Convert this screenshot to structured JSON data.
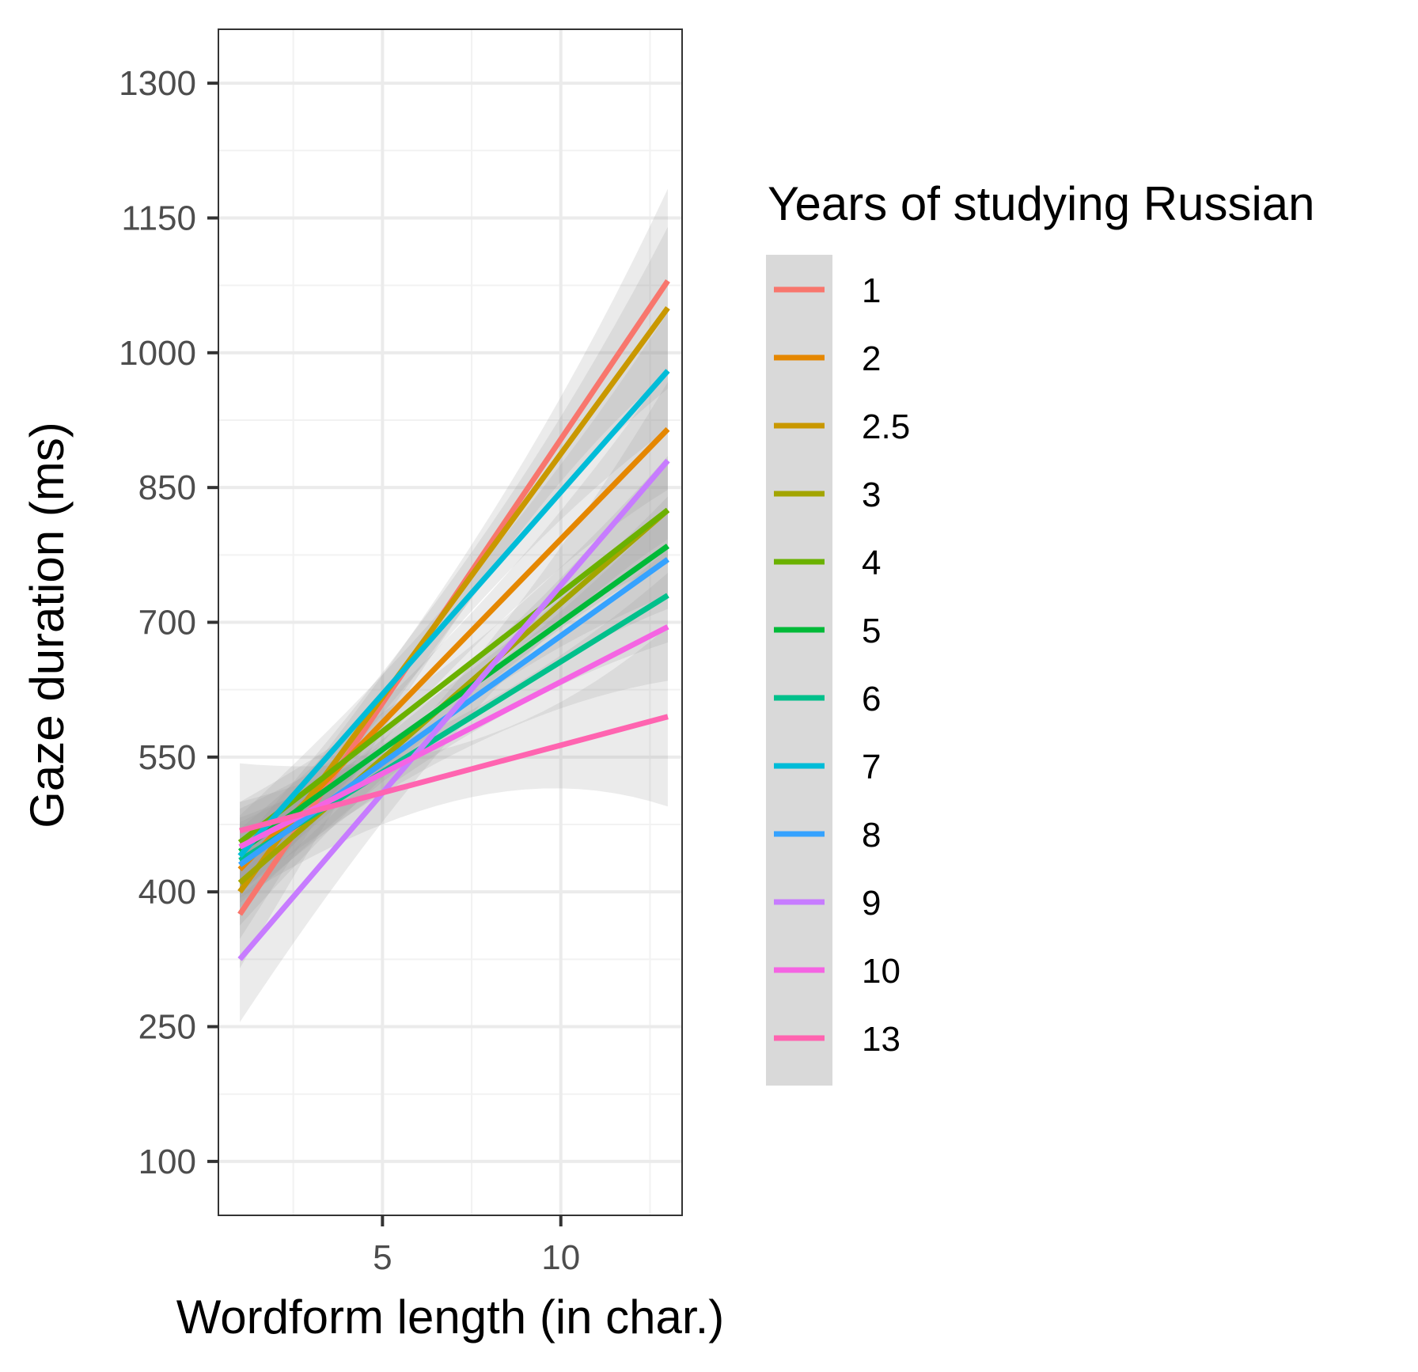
{
  "chart_data": {
    "type": "line",
    "title": "",
    "xlabel": "Wordform length (in char.)",
    "ylabel": "Gaze duration (ms)",
    "xlim": [
      0.4,
      13.4
    ],
    "ylim": [
      40,
      1360
    ],
    "x_ticks": [
      5,
      10
    ],
    "y_ticks": [
      100,
      250,
      400,
      550,
      700,
      850,
      1000,
      1150,
      1300
    ],
    "grid": true,
    "legend_title": "Years of studying Russian",
    "legend_position": "right",
    "x_range": [
      1,
      13
    ],
    "series": [
      {
        "name": "1",
        "color": "#F8766D",
        "x": [
          1,
          13
        ],
        "y": [
          375,
          1080
        ],
        "ci_low": [
          320,
          980
        ],
        "ci_high": [
          440,
          1185
        ]
      },
      {
        "name": "2",
        "color": "#E58700",
        "x": [
          1,
          13
        ],
        "y": [
          425,
          915
        ],
        "ci_low": [
          380,
          850
        ],
        "ci_high": [
          470,
          985
        ]
      },
      {
        "name": "2.5",
        "color": "#C99800",
        "x": [
          1,
          13
        ],
        "y": [
          400,
          1050
        ],
        "ci_low": [
          350,
          960
        ],
        "ci_high": [
          455,
          1140
        ]
      },
      {
        "name": "3",
        "color": "#A3A500",
        "x": [
          1,
          13
        ],
        "y": [
          410,
          825
        ],
        "ci_low": [
          365,
          770
        ],
        "ci_high": [
          460,
          885
        ]
      },
      {
        "name": "4",
        "color": "#6BB100",
        "x": [
          1,
          13
        ],
        "y": [
          455,
          825
        ],
        "ci_low": [
          410,
          765
        ],
        "ci_high": [
          500,
          885
        ]
      },
      {
        "name": "5",
        "color": "#00BA38",
        "x": [
          1,
          13
        ],
        "y": [
          445,
          785
        ],
        "ci_low": [
          400,
          730
        ],
        "ci_high": [
          495,
          840
        ]
      },
      {
        "name": "6",
        "color": "#00C08B",
        "x": [
          1,
          13
        ],
        "y": [
          435,
          730
        ],
        "ci_low": [
          390,
          680
        ],
        "ci_high": [
          485,
          785
        ]
      },
      {
        "name": "7",
        "color": "#00BCD8",
        "x": [
          1,
          13
        ],
        "y": [
          440,
          980
        ],
        "ci_low": [
          395,
          915
        ],
        "ci_high": [
          485,
          1045
        ]
      },
      {
        "name": "8",
        "color": "#35A2FF",
        "x": [
          1,
          13
        ],
        "y": [
          430,
          770
        ],
        "ci_low": [
          385,
          715
        ],
        "ci_high": [
          480,
          825
        ]
      },
      {
        "name": "9",
        "color": "#C77CFF",
        "x": [
          1,
          13
        ],
        "y": [
          325,
          880
        ],
        "ci_low": [
          255,
          790
        ],
        "ci_high": [
          395,
          965
        ]
      },
      {
        "name": "10",
        "color": "#F564E3",
        "x": [
          1,
          13
        ],
        "y": [
          450,
          695
        ],
        "ci_low": [
          400,
          635
        ],
        "ci_high": [
          500,
          755
        ]
      },
      {
        "name": "13",
        "color": "#FF64B0",
        "x": [
          1,
          13
        ],
        "y": [
          468,
          595
        ],
        "ci_low": [
          410,
          505
        ],
        "ci_high": [
          560,
          705
        ]
      }
    ]
  }
}
